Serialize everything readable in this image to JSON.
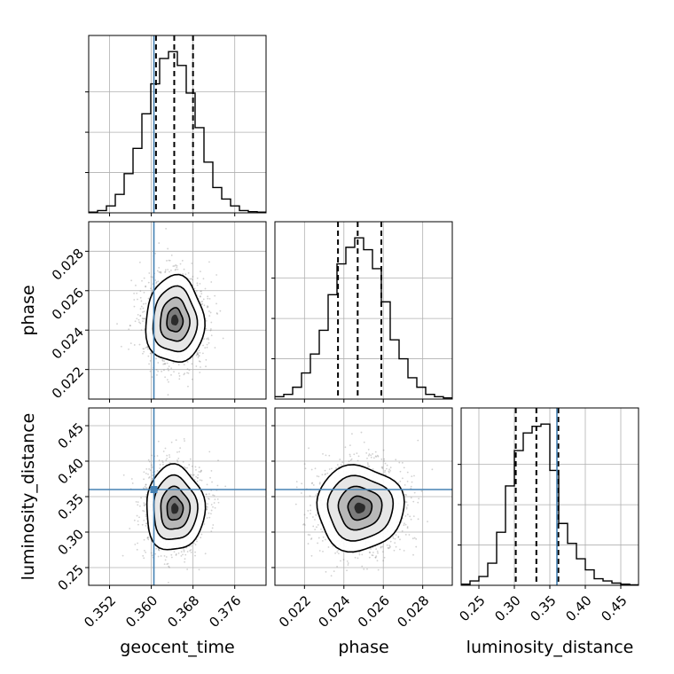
{
  "chart_data": {
    "type": "corner",
    "parameters": [
      "geocent_time",
      "phase",
      "luminosity_distance"
    ],
    "truths": {
      "geocent_time": 0.3605,
      "phase": null,
      "luminosity_distance": 0.36
    },
    "truth_color": "#4682b4",
    "grid": true,
    "axes": {
      "geocent_time": {
        "range": [
          0.348,
          0.382
        ],
        "ticks": [
          0.352,
          0.36,
          0.368,
          0.376
        ],
        "tick_labels": [
          "0.352",
          "0.360",
          "0.368",
          "0.376"
        ]
      },
      "phase": {
        "range": [
          0.0205,
          0.0295
        ],
        "ticks": [
          0.022,
          0.024,
          0.026,
          0.028
        ],
        "tick_labels": [
          "0.022",
          "0.024",
          "0.026",
          "0.028"
        ]
      },
      "luminosity_distance": {
        "range": [
          0.225,
          0.475
        ],
        "ticks": [
          0.25,
          0.3,
          0.35,
          0.4,
          0.45
        ],
        "tick_labels": [
          "0.25",
          "0.30",
          "0.35",
          "0.40",
          "0.45"
        ]
      }
    },
    "marginals": [
      {
        "param": "geocent_time",
        "bin_edges": [
          0.348,
          0.3497,
          0.3514,
          0.3531,
          0.3548,
          0.3565,
          0.3582,
          0.3599,
          0.3616,
          0.3633,
          0.365,
          0.3667,
          0.3684,
          0.3701,
          0.3718,
          0.3735,
          0.3752,
          0.3769,
          0.3786,
          0.3803,
          0.382
        ],
        "counts": [
          0.3,
          1,
          3,
          8,
          17,
          28,
          43,
          56,
          67,
          70,
          64,
          52,
          37,
          22,
          11,
          6,
          3,
          1,
          0.5,
          0.3
        ],
        "quantiles": [
          0.3609,
          0.3644,
          0.368
        ]
      },
      {
        "param": "phase",
        "bin_edges": [
          0.0205,
          0.02095,
          0.0214,
          0.02185,
          0.0223,
          0.02275,
          0.0232,
          0.02365,
          0.0241,
          0.02455,
          0.025,
          0.02545,
          0.0259,
          0.02635,
          0.0268,
          0.02725,
          0.0277,
          0.02815,
          0.0286,
          0.02905,
          0.0295
        ],
        "counts": [
          1,
          2,
          5,
          11,
          19,
          29,
          44,
          57,
          64,
          68,
          63,
          55,
          41,
          25,
          17,
          9,
          5,
          2,
          1,
          0.5
        ],
        "quantiles": [
          0.0237,
          0.0247,
          0.0259
        ]
      },
      {
        "param": "luminosity_distance",
        "bin_edges": [
          0.225,
          0.2375,
          0.25,
          0.2625,
          0.275,
          0.2875,
          0.3,
          0.3125,
          0.325,
          0.3375,
          0.35,
          0.3625,
          0.375,
          0.3875,
          0.4,
          0.4125,
          0.425,
          0.4375,
          0.45,
          0.4625,
          0.475
        ],
        "counts": [
          0.5,
          2,
          4,
          10,
          24,
          45,
          61,
          69,
          72,
          73,
          52,
          28,
          19,
          12,
          7,
          3,
          2,
          1,
          0.5,
          0.2
        ],
        "quantiles": [
          0.302,
          0.331,
          0.362
        ]
      }
    ],
    "pairs": [
      {
        "x": "geocent_time",
        "y": "phase",
        "center": [
          0.3645,
          0.0245
        ],
        "sigma": [
          0.0028,
          0.0011
        ]
      },
      {
        "x": "geocent_time",
        "y": "luminosity_distance",
        "center": [
          0.3645,
          0.333
        ],
        "sigma": [
          0.0028,
          0.03
        ]
      },
      {
        "x": "phase",
        "y": "luminosity_distance",
        "center": [
          0.0248,
          0.334
        ],
        "sigma": [
          0.0011,
          0.03
        ]
      }
    ]
  }
}
